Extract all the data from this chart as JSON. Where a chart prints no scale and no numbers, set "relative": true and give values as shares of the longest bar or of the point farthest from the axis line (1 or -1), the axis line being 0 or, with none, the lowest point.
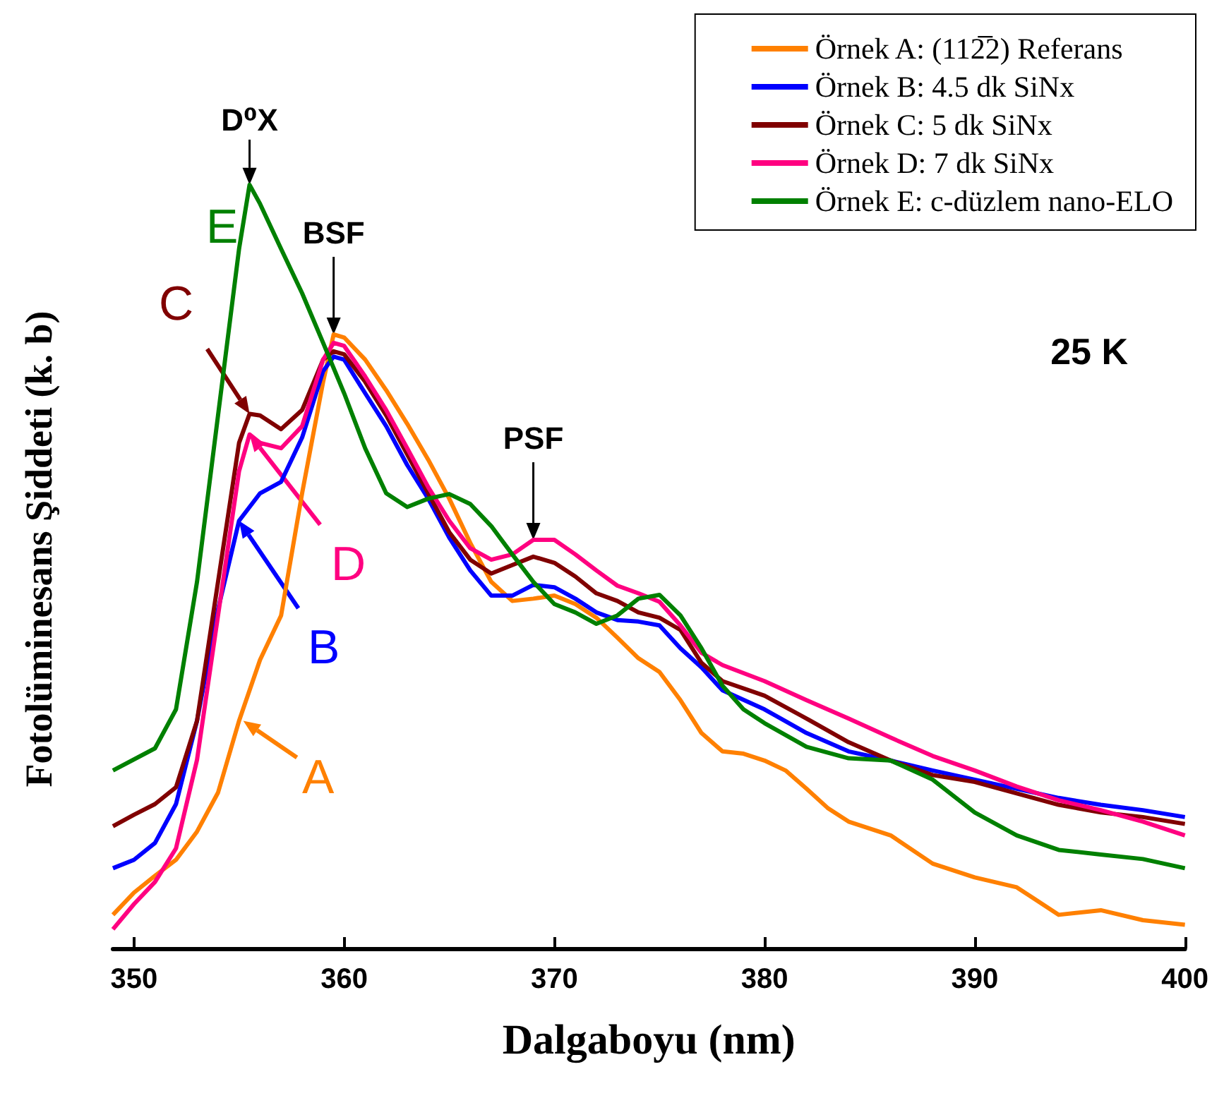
{
  "chart_data": {
    "type": "line",
    "relative": true,
    "xlabel": "Dalgaboyu (nm)",
    "ylabel": "Fotolüminesans Şiddeti (k. b)",
    "xlim": [
      349,
      400
    ],
    "xticks": [
      350,
      360,
      370,
      380,
      390,
      400
    ],
    "legend": "top right",
    "marker": "none",
    "line_style": "solid",
    "tick_labels": "x",
    "series": [
      {
        "name": "Örnek A: (112̅2) Referans",
        "color": "#ff8000",
        "x": [
          349,
          350,
          351,
          352,
          353,
          354,
          355,
          356,
          357,
          358,
          359,
          359.5,
          360,
          361,
          362,
          363,
          364,
          365,
          366,
          367,
          368,
          369,
          370,
          371,
          372,
          373,
          374,
          375,
          376,
          377,
          378,
          379,
          380,
          381,
          382,
          383,
          384,
          386,
          388,
          390,
          392,
          394,
          396,
          398,
          400
        ],
        "values": [
          0.044,
          0.073,
          0.095,
          0.116,
          0.153,
          0.204,
          0.298,
          0.378,
          0.436,
          0.596,
          0.742,
          0.804,
          0.8,
          0.771,
          0.731,
          0.687,
          0.64,
          0.589,
          0.531,
          0.48,
          0.455,
          0.458,
          0.462,
          0.451,
          0.433,
          0.407,
          0.38,
          0.362,
          0.325,
          0.282,
          0.258,
          0.255,
          0.246,
          0.233,
          0.209,
          0.184,
          0.166,
          0.148,
          0.111,
          0.093,
          0.08,
          0.044,
          0.05,
          0.037,
          0.031
        ]
      },
      {
        "name": "Örnek B: 4.5 dk SiNx",
        "color": "#0000ff",
        "x": [
          349,
          350,
          351,
          352,
          353,
          354,
          355,
          356,
          357,
          358,
          359,
          359.5,
          360,
          361,
          362,
          363,
          364,
          365,
          366,
          367,
          368,
          369,
          370,
          371,
          372,
          373,
          374,
          375,
          376,
          377,
          378,
          380,
          382,
          384,
          386,
          388,
          390,
          392,
          394,
          396,
          398,
          400
        ],
        "values": [
          0.105,
          0.116,
          0.138,
          0.189,
          0.298,
          0.444,
          0.56,
          0.596,
          0.611,
          0.669,
          0.756,
          0.775,
          0.771,
          0.727,
          0.684,
          0.633,
          0.589,
          0.538,
          0.495,
          0.462,
          0.462,
          0.476,
          0.473,
          0.458,
          0.44,
          0.43,
          0.428,
          0.423,
          0.393,
          0.368,
          0.338,
          0.313,
          0.282,
          0.258,
          0.246,
          0.233,
          0.221,
          0.209,
          0.197,
          0.188,
          0.181,
          0.172
        ]
      },
      {
        "name": "Örnek C: 5 dk SiNx",
        "color": "#800000",
        "x": [
          349,
          350,
          351,
          352,
          353,
          354,
          355,
          355.5,
          356,
          357,
          358,
          359,
          359.5,
          360,
          361,
          362,
          363,
          364,
          365,
          366,
          367,
          368,
          369,
          370,
          371,
          372,
          373,
          374,
          375,
          376,
          377,
          378,
          380,
          382,
          384,
          386,
          388,
          390,
          392,
          394,
          396,
          398,
          400
        ],
        "values": [
          0.16,
          0.175,
          0.189,
          0.211,
          0.298,
          0.48,
          0.662,
          0.7,
          0.698,
          0.68,
          0.705,
          0.771,
          0.782,
          0.778,
          0.742,
          0.698,
          0.647,
          0.596,
          0.545,
          0.509,
          0.491,
          0.502,
          0.513,
          0.505,
          0.487,
          0.465,
          0.455,
          0.44,
          0.433,
          0.417,
          0.374,
          0.35,
          0.331,
          0.301,
          0.27,
          0.246,
          0.227,
          0.218,
          0.203,
          0.188,
          0.178,
          0.172,
          0.163
        ]
      },
      {
        "name": "Örnek D: 7 dk SiNx",
        "color": "#ff0080",
        "x": [
          349,
          350,
          351,
          352,
          353,
          354,
          355,
          355.5,
          356,
          357,
          358,
          359,
          359.5,
          360,
          361,
          362,
          363,
          364,
          365,
          366,
          367,
          368,
          369,
          370,
          371,
          372,
          373,
          374,
          375,
          376,
          377,
          378,
          380,
          382,
          384,
          386,
          388,
          390,
          392,
          394,
          396,
          398,
          400
        ],
        "values": [
          0.025,
          0.058,
          0.087,
          0.131,
          0.247,
          0.436,
          0.625,
          0.673,
          0.662,
          0.655,
          0.684,
          0.771,
          0.793,
          0.789,
          0.749,
          0.705,
          0.655,
          0.604,
          0.56,
          0.524,
          0.509,
          0.516,
          0.535,
          0.535,
          0.516,
          0.495,
          0.475,
          0.465,
          0.454,
          0.423,
          0.387,
          0.371,
          0.35,
          0.325,
          0.301,
          0.276,
          0.252,
          0.233,
          0.212,
          0.194,
          0.181,
          0.166,
          0.148
        ]
      },
      {
        "name": "Örnek E: c-düzlem nano-ELO",
        "color": "#008000",
        "x": [
          349,
          351,
          352,
          353,
          354,
          355,
          355.5,
          356,
          357,
          358,
          359,
          360,
          361,
          362,
          363,
          364,
          365,
          366,
          367,
          368,
          369,
          370,
          371,
          372,
          373,
          374,
          375,
          376,
          377,
          378,
          379,
          380,
          382,
          384,
          386,
          388,
          390,
          392,
          394,
          396,
          398,
          400
        ],
        "values": [
          0.233,
          0.262,
          0.313,
          0.48,
          0.698,
          0.916,
          1,
          0.975,
          0.916,
          0.858,
          0.793,
          0.727,
          0.655,
          0.596,
          0.578,
          0.589,
          0.595,
          0.582,
          0.553,
          0.516,
          0.48,
          0.451,
          0.44,
          0.425,
          0.436,
          0.458,
          0.463,
          0.436,
          0.393,
          0.344,
          0.313,
          0.295,
          0.264,
          0.249,
          0.246,
          0.221,
          0.178,
          0.148,
          0.129,
          0.123,
          0.117,
          0.105
        ]
      }
    ],
    "annotations": [
      {
        "text": "D⁰X",
        "x": 355.5,
        "y": 1
      },
      {
        "text": "BSF",
        "x": 359.5,
        "y": 0.804
      },
      {
        "text": "PSF",
        "x": 369,
        "y": 0.535
      },
      "E",
      {
        "text": "C",
        "x": 355.5,
        "y": 0.7
      },
      {
        "text": "D",
        "x": 355.5,
        "y": 0.673
      },
      {
        "text": "B",
        "x": 355,
        "y": 0.56
      },
      {
        "text": "A",
        "x": 355.2,
        "y": 0.298
      },
      "25 K"
    ]
  }
}
